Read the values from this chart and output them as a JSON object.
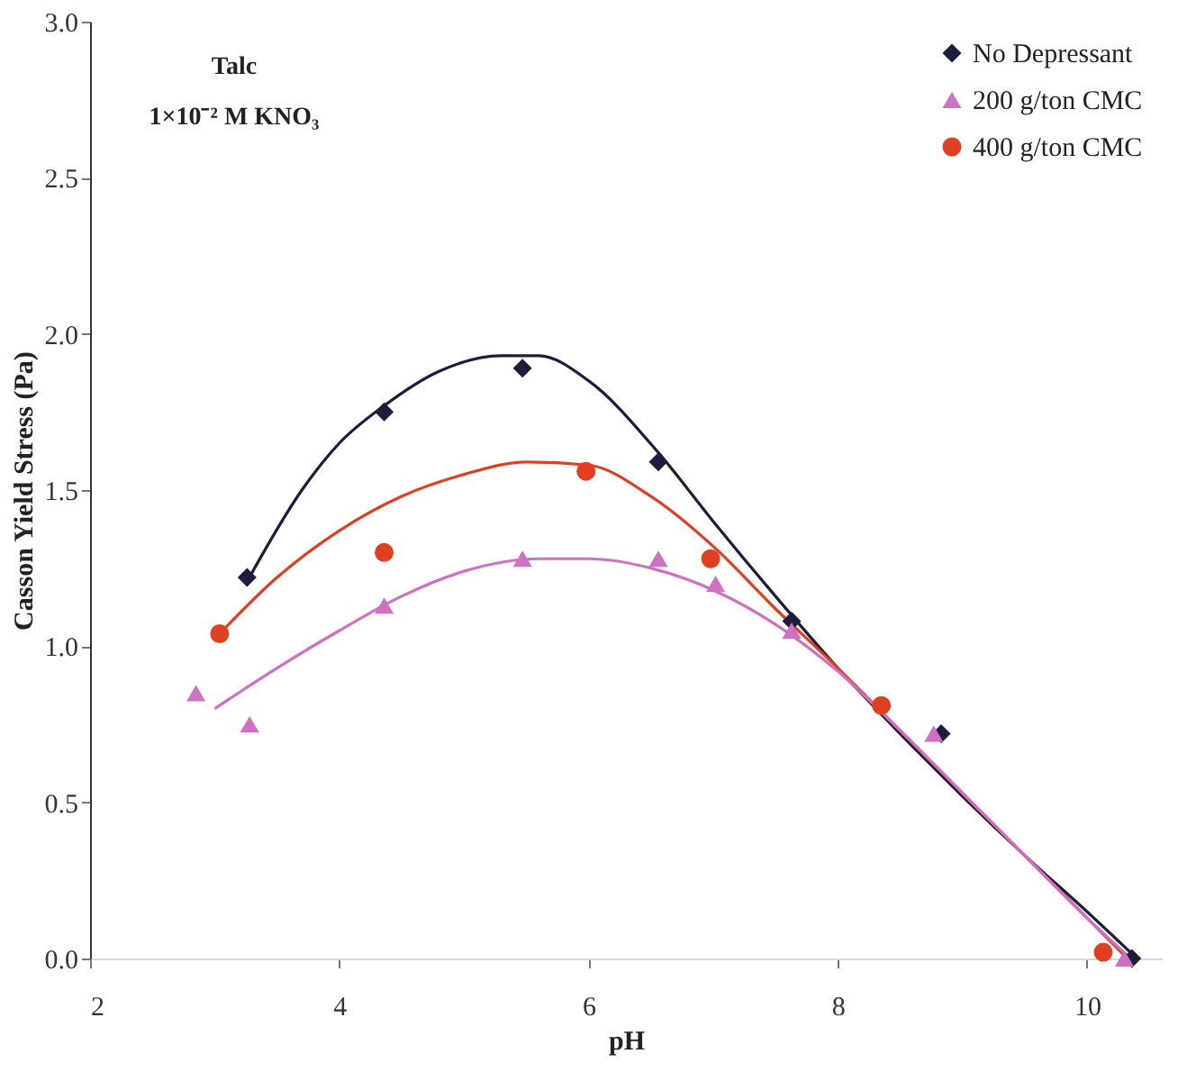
{
  "chart_data": {
    "type": "scatter",
    "xlabel": "pH",
    "ylabel": "Casson Yield Stress (Pa)",
    "xlim": [
      2,
      10.6
    ],
    "ylim": [
      0,
      3
    ],
    "xticks": [
      2,
      4,
      6,
      8,
      10
    ],
    "yticks": [
      {
        "value": 0,
        "label": "0.0"
      },
      {
        "value": 0.5,
        "label": "0.5"
      },
      {
        "value": 1,
        "label": "1.0"
      },
      {
        "value": 1.5,
        "label": "1.5"
      },
      {
        "value": 2,
        "label": "2.0"
      },
      {
        "value": 2.5,
        "label": "2.5"
      },
      {
        "value": 3,
        "label": "3.0"
      }
    ],
    "grid": false,
    "legend": "top right",
    "annotations": [
      "Talc",
      "1×10⁻² M KNO₃"
    ],
    "series": [
      {
        "name": "No Depressant",
        "color": "#1c1c3c",
        "marker": "diamond",
        "x": [
          3.26,
          4.36,
          5.47,
          6.56,
          7.63,
          8.83,
          10.36
        ],
        "values": [
          1.22,
          1.75,
          1.89,
          1.59,
          1.08,
          0.72,
          0.0
        ]
      },
      {
        "name": "200 g/ton CMC",
        "color": "#d070c0",
        "marker": "triangle",
        "x": [
          2.85,
          3.28,
          4.36,
          5.47,
          6.56,
          7.02,
          7.63,
          8.77,
          10.3
        ],
        "values": [
          0.85,
          0.75,
          1.13,
          1.28,
          1.28,
          1.2,
          1.05,
          0.72,
          0.0
        ]
      },
      {
        "name": "400 g/ton CMC",
        "color": "#e04020",
        "marker": "circle",
        "x": [
          3.04,
          4.36,
          5.98,
          6.98,
          8.35,
          10.13
        ],
        "values": [
          1.04,
          1.3,
          1.56,
          1.28,
          0.81,
          0.02
        ]
      },
      {
        "type": "line",
        "color": "#1c1c3c",
        "line_style": "solid",
        "x": [
          3.25,
          3.7,
          4.0,
          4.36,
          4.8,
          5.3,
          5.6,
          6.0,
          6.56,
          7.0,
          7.5,
          8.0,
          8.5,
          9.0,
          9.5,
          10.0,
          10.4
        ],
        "values": [
          1.2,
          1.5,
          1.65,
          1.77,
          1.88,
          1.93,
          1.93,
          1.85,
          1.62,
          1.4,
          1.16,
          0.93,
          0.72,
          0.52,
          0.33,
          0.15,
          0.0
        ]
      },
      {
        "type": "line",
        "color": "#e04020",
        "line_style": "solid",
        "x": [
          3.04,
          3.5,
          4.0,
          4.5,
          5.0,
          5.5,
          6.0,
          6.5,
          7.0,
          7.5,
          8.0,
          8.5,
          9.0,
          9.5,
          10.0,
          10.3
        ],
        "values": [
          1.04,
          1.22,
          1.37,
          1.48,
          1.55,
          1.59,
          1.58,
          1.48,
          1.32,
          1.12,
          0.93,
          0.73,
          0.53,
          0.33,
          0.13,
          0.01
        ]
      },
      {
        "type": "line",
        "color": "#d070c0",
        "line_style": "solid",
        "x": [
          3.0,
          3.5,
          4.0,
          4.5,
          5.0,
          5.6,
          6.0,
          6.5,
          7.0,
          7.5,
          8.0,
          8.5,
          9.0,
          9.5,
          10.0,
          10.35
        ],
        "values": [
          0.8,
          0.93,
          1.05,
          1.16,
          1.24,
          1.28,
          1.28,
          1.25,
          1.18,
          1.07,
          0.92,
          0.73,
          0.53,
          0.33,
          0.13,
          0.0
        ]
      }
    ]
  }
}
